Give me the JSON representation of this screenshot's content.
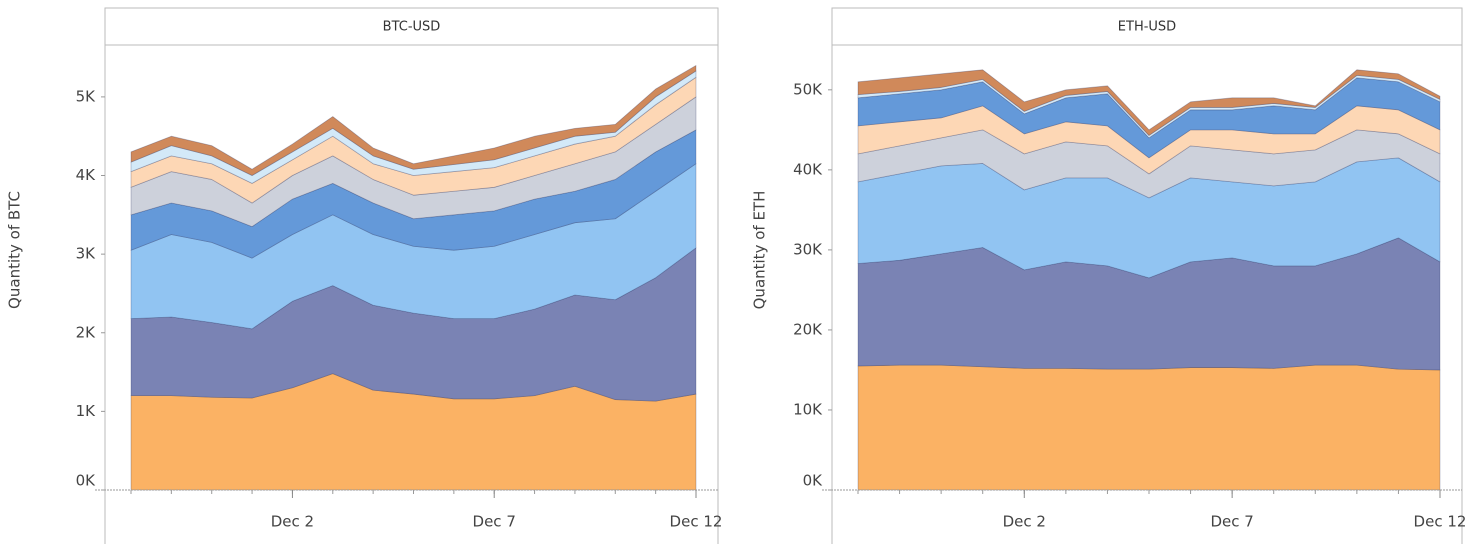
{
  "chart_data": [
    {
      "type": "stacked_area",
      "title": "BTC-USD",
      "y_label": "Quantity of BTC",
      "x": [
        "Nov 28",
        "Nov 29",
        "Nov 30",
        "Dec 1",
        "Dec 2",
        "Dec 3",
        "Dec 4",
        "Dec 5",
        "Dec 6",
        "Dec 7",
        "Dec 8",
        "Dec 9",
        "Dec 10",
        "Dec 11",
        "Dec 12"
      ],
      "xticks": [
        "Dec 2",
        "Dec 7",
        "Dec 12"
      ],
      "ylim": [
        0,
        5660
      ],
      "yticks": [
        {
          "value": 0,
          "label": "0K"
        },
        {
          "value": 1000,
          "label": "1K"
        },
        {
          "value": 2000,
          "label": "2K"
        },
        {
          "value": 3000,
          "label": "3K"
        },
        {
          "value": 4000,
          "label": "4K"
        },
        {
          "value": 5000,
          "label": "5K"
        }
      ],
      "series": [
        {
          "color": "#fbb264",
          "values": [
            1200,
            1200,
            1180,
            1170,
            1300,
            1480,
            1270,
            1220,
            1160,
            1160,
            1200,
            1320,
            1150,
            1130,
            1220
          ]
        },
        {
          "color": "#7a83b4",
          "values": [
            980,
            1000,
            950,
            880,
            1100,
            1120,
            1080,
            1030,
            1020,
            1020,
            1100,
            1160,
            1270,
            1570,
            1860
          ]
        },
        {
          "color": "#91c4f2",
          "values": [
            870,
            1050,
            1020,
            900,
            850,
            900,
            900,
            850,
            870,
            920,
            950,
            920,
            1030,
            1100,
            1070
          ]
        },
        {
          "color": "#6499d9",
          "values": [
            450,
            400,
            400,
            400,
            450,
            400,
            400,
            350,
            450,
            450,
            450,
            400,
            500,
            500,
            430
          ]
        },
        {
          "color": "#cdd1db",
          "values": [
            350,
            400,
            400,
            300,
            300,
            350,
            300,
            300,
            300,
            300,
            300,
            350,
            350,
            350,
            420
          ]
        },
        {
          "color": "#fdd7b5",
          "values": [
            200,
            200,
            200,
            250,
            200,
            250,
            200,
            250,
            250,
            250,
            250,
            250,
            200,
            250,
            250
          ]
        },
        {
          "color": "#d3e9f8",
          "values": [
            120,
            130,
            100,
            100,
            100,
            100,
            100,
            80,
            90,
            100,
            100,
            100,
            50,
            100,
            80
          ]
        },
        {
          "color": "#d0895a",
          "values": [
            130,
            120,
            130,
            80,
            100,
            150,
            100,
            70,
            110,
            150,
            150,
            100,
            100,
            100,
            70
          ]
        }
      ]
    },
    {
      "type": "stacked_area",
      "title": "ETH-USD",
      "y_label": "Quantity of ETH",
      "x": [
        "Nov 28",
        "Nov 29",
        "Nov 30",
        "Dec 1",
        "Dec 2",
        "Dec 3",
        "Dec 4",
        "Dec 5",
        "Dec 6",
        "Dec 7",
        "Dec 8",
        "Dec 9",
        "Dec 10",
        "Dec 11",
        "Dec 12"
      ],
      "xticks": [
        "Dec 2",
        "Dec 7",
        "Dec 12"
      ],
      "ylim": [
        0,
        55600
      ],
      "yticks": [
        {
          "value": 0,
          "label": "0K"
        },
        {
          "value": 10000,
          "label": "10K"
        },
        {
          "value": 20000,
          "label": "20K"
        },
        {
          "value": 30000,
          "label": "30K"
        },
        {
          "value": 40000,
          "label": "40K"
        },
        {
          "value": 50000,
          "label": "50K"
        }
      ],
      "series": [
        {
          "color": "#fbb264",
          "values": [
            15500,
            15600,
            15600,
            15400,
            15200,
            15200,
            15100,
            15100,
            15300,
            15300,
            15200,
            15600,
            15600,
            15100,
            15000
          ]
        },
        {
          "color": "#7a83b4",
          "values": [
            12800,
            13100,
            13900,
            14900,
            12300,
            13300,
            12900,
            11400,
            13200,
            13700,
            12800,
            12400,
            13900,
            16400,
            13500
          ]
        },
        {
          "color": "#91c4f2",
          "values": [
            10200,
            10800,
            11000,
            10500,
            10000,
            10500,
            11000,
            10000,
            10500,
            9500,
            10000,
            10500,
            11500,
            10000,
            10000
          ]
        },
        {
          "color": "#cdd1db",
          "values": [
            3500,
            3500,
            3500,
            4200,
            4500,
            4500,
            4000,
            3000,
            4000,
            4000,
            4000,
            4000,
            4000,
            3000,
            3500
          ]
        },
        {
          "color": "#fdd7b5",
          "values": [
            3500,
            3000,
            2500,
            3000,
            2500,
            2500,
            2500,
            2000,
            2000,
            2500,
            2500,
            2000,
            3000,
            3000,
            3000
          ]
        },
        {
          "color": "#6499d9",
          "values": [
            3500,
            3500,
            3500,
            3000,
            2500,
            3000,
            4000,
            2500,
            2500,
            2500,
            3500,
            3000,
            3500,
            3500,
            3500
          ]
        },
        {
          "color": "#d3e9f8",
          "values": [
            400,
            300,
            300,
            300,
            300,
            300,
            300,
            300,
            300,
            300,
            300,
            300,
            300,
            300,
            300
          ]
        },
        {
          "color": "#d0895a",
          "values": [
            1600,
            1700,
            1700,
            1200,
            1200,
            700,
            700,
            700,
            700,
            1200,
            700,
            200,
            700,
            700,
            400
          ]
        }
      ]
    }
  ]
}
